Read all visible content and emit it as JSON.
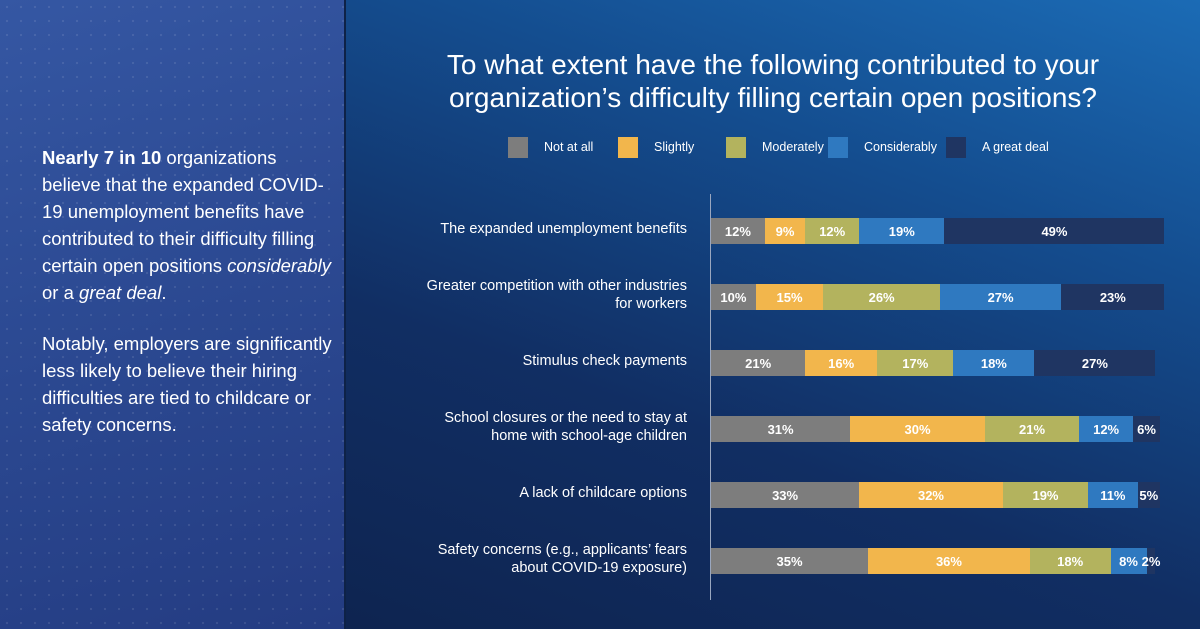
{
  "left_panel": {
    "p1_bold": "Nearly 7 in 10",
    "p1_a": " organizations believe that the expanded COVID-19 unemployment benefits have contributed to their difficulty filling certain open positions ",
    "p1_italic1": "considerably",
    "p1_b": " or a ",
    "p1_italic2": "great deal",
    "p1_c": ".",
    "p2": "Notably, employers are significantly less likely to believe their hiring difficulties are tied to childcare or safety concerns."
  },
  "chart_data": {
    "type": "bar",
    "orientation": "horizontal",
    "stacked": true,
    "title_line1": "To what extent have the following contributed to your",
    "title_line2": "organization’s difficulty filling certain open positions?",
    "categories": [
      "The expanded unemployment benefits",
      "Greater competition with other industries for workers",
      "Stimulus check payments",
      "School closures or the need to stay at home with school-age children",
      "A lack of childcare options",
      "Safety concerns (e.g., applicants’ fears about COVID-19 exposure)"
    ],
    "category_lines": [
      [
        "The expanded unemployment benefits"
      ],
      [
        "Greater competition with other industries",
        "for workers"
      ],
      [
        "Stimulus check payments"
      ],
      [
        "School closures or the need to stay at",
        "home with school-age children"
      ],
      [
        "A lack of childcare options"
      ],
      [
        "Safety concerns (e.g., applicants’ fears",
        "about COVID-19 exposure)"
      ]
    ],
    "series": [
      {
        "name": "Not at all",
        "color": "#7d7d7d",
        "values": [
          12,
          10,
          21,
          31,
          33,
          35
        ]
      },
      {
        "name": "Slightly",
        "color": "#f2b64c",
        "values": [
          9,
          15,
          16,
          30,
          32,
          36
        ]
      },
      {
        "name": "Moderately",
        "color": "#b3b35e",
        "values": [
          12,
          26,
          17,
          21,
          19,
          18
        ]
      },
      {
        "name": "Considerably",
        "color": "#2f79c0",
        "values": [
          19,
          27,
          18,
          12,
          11,
          8
        ]
      },
      {
        "name": "A great deal",
        "color": "#1f3562",
        "values": [
          49,
          23,
          27,
          6,
          5,
          2
        ]
      }
    ],
    "value_suffix": "%",
    "legend_position": "top"
  }
}
